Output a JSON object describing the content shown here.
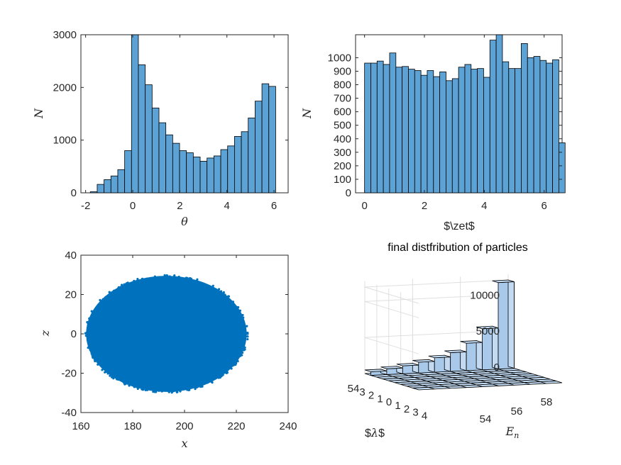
{
  "colors": {
    "hist_fill": "#5DA2D5",
    "hist_edge": "#000000",
    "scatter": "#0072BD",
    "bar3d_top": "#C2DAF2",
    "bar3d_side": "#A9C9EA",
    "grid": "#DFDFDF",
    "axis": "#262626"
  },
  "chart_data": [
    {
      "type": "bar",
      "title": "",
      "xlabel": "θ",
      "ylabel": "N",
      "xlim": [
        -2.2,
        6.6
      ],
      "ylim": [
        0,
        3000
      ],
      "xticks": [
        -2,
        0,
        2,
        4,
        6
      ],
      "yticks": [
        0,
        1000,
        2000,
        3000
      ],
      "xtick_labels": [
        "-2",
        "0",
        "2",
        "4",
        "6"
      ],
      "ytick_labels": [
        "0",
        "1000",
        "2000",
        "3000"
      ],
      "bin_start": -1.8,
      "bin_width": 0.2915,
      "counts": [
        20,
        160,
        250,
        320,
        440,
        800,
        3000,
        2430,
        2050,
        1610,
        1330,
        1100,
        940,
        800,
        760,
        680,
        600,
        660,
        700,
        820,
        890,
        1070,
        1160,
        1420,
        1740,
        2070,
        2020
      ]
    },
    {
      "type": "bar",
      "title": "",
      "xlabel": "$\\zet$",
      "ylabel": "N",
      "xlim": [
        -0.3,
        6.6
      ],
      "ylim": [
        0,
        1170
      ],
      "xticks": [
        0,
        2,
        4,
        6
      ],
      "yticks": [
        0,
        100,
        200,
        300,
        400,
        500,
        600,
        700,
        800,
        900,
        1000
      ],
      "xtick_labels": [
        "0",
        "2",
        "4",
        "6"
      ],
      "ytick_labels": [
        "0",
        "100",
        "200",
        "300",
        "400",
        "500",
        "600",
        "700",
        "800",
        "900",
        "1000"
      ],
      "bin_start": 0,
      "bin_width": 0.2094,
      "counts": [
        960,
        960,
        975,
        950,
        1035,
        930,
        935,
        915,
        905,
        870,
        905,
        860,
        895,
        830,
        845,
        930,
        950,
        915,
        920,
        855,
        1130,
        1170,
        970,
        920,
        920,
        1105,
        1000,
        1010,
        980,
        960,
        985,
        370
      ]
    },
    {
      "type": "scatter",
      "title": "",
      "xlabel": "x",
      "ylabel": "z",
      "xlim": [
        160,
        240
      ],
      "ylim": [
        -40,
        40
      ],
      "xticks": [
        160,
        180,
        200,
        220,
        240
      ],
      "yticks": [
        -40,
        -20,
        0,
        20,
        40
      ],
      "xtick_labels": [
        "160",
        "180",
        "200",
        "220",
        "240"
      ],
      "ytick_labels": [
        "-40",
        "-20",
        "0",
        "20",
        "40"
      ],
      "region": {
        "shape": "ellipse",
        "center": [
          193,
          0
        ],
        "semi_axes": [
          31,
          29.5
        ]
      }
    },
    {
      "type": "bar3",
      "title": "final distfribution of particles",
      "xlabel": "$\\lambda$",
      "ylabel": "E_n",
      "zlim": [
        0,
        12000
      ],
      "zticks": [
        0,
        5000,
        10000
      ],
      "ztick_labels": [
        "0",
        "5000",
        "10000"
      ],
      "xtick_labels": [
        "54",
        "3",
        "2",
        "1",
        "0",
        "1",
        "2",
        "3",
        "4"
      ],
      "ytick_labels": [
        "54",
        "56",
        "58"
      ],
      "xlabel_parts": [
        "$",
        "λ",
        "$"
      ],
      "ylabel_main": "E",
      "ylabel_sub": "n",
      "big_bars": [
        {
          "row": 0,
          "col": 8,
          "value": 12000
        },
        {
          "row": 0,
          "col": 7,
          "value": 5700
        },
        {
          "row": 0,
          "col": 6,
          "value": 3800
        },
        {
          "row": 0,
          "col": 5,
          "value": 2600
        },
        {
          "row": 0,
          "col": 4,
          "value": 2000
        },
        {
          "row": 0,
          "col": 3,
          "value": 1500
        },
        {
          "row": 0,
          "col": 2,
          "value": 1100
        },
        {
          "row": 0,
          "col": 1,
          "value": 800
        },
        {
          "row": 0,
          "col": 0,
          "value": 500
        }
      ]
    }
  ]
}
